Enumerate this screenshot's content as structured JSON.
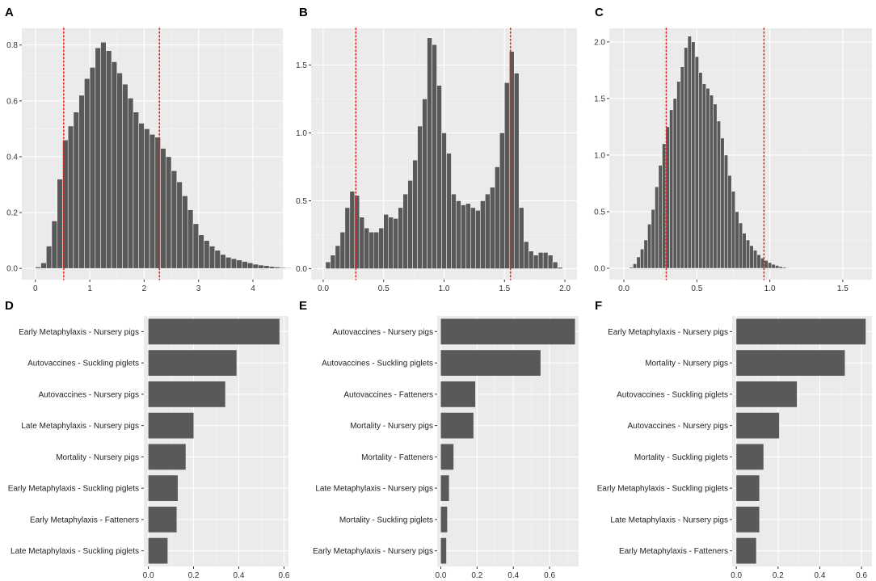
{
  "figure_title": "",
  "colors": {
    "panel_bg": "#ebebeb",
    "grid_major": "#ffffff",
    "bar_fill": "#595959",
    "bar_stroke": "#ffffff",
    "vline": "#e8221a",
    "text": "#333333"
  },
  "chart_data": [
    {
      "panel": "A",
      "type": "histogram",
      "xlim": [
        -0.25,
        4.55
      ],
      "ylim": [
        -0.04,
        0.86
      ],
      "xticks": [
        0,
        1,
        2,
        3,
        4
      ],
      "xtick_labels": [
        "0",
        "1",
        "2",
        "3",
        "4"
      ],
      "yticks": [
        0,
        0.2,
        0.4,
        0.6,
        0.8
      ],
      "ytick_labels": [
        "0.0",
        "0.2",
        "0.4",
        "0.6",
        "0.8"
      ],
      "bin_start": 0.05,
      "bin_width": 0.1,
      "values": [
        0.005,
        0.02,
        0.08,
        0.17,
        0.32,
        0.46,
        0.51,
        0.56,
        0.62,
        0.68,
        0.72,
        0.79,
        0.81,
        0.78,
        0.74,
        0.7,
        0.66,
        0.61,
        0.56,
        0.52,
        0.5,
        0.48,
        0.47,
        0.43,
        0.4,
        0.35,
        0.31,
        0.26,
        0.21,
        0.16,
        0.12,
        0.1,
        0.08,
        0.065,
        0.05,
        0.04,
        0.035,
        0.03,
        0.025,
        0.02,
        0.015,
        0.012,
        0.01,
        0.007,
        0.005,
        0.003,
        0.002,
        0,
        0,
        0,
        0,
        0,
        0,
        0.002
      ],
      "vlines": [
        0.52,
        2.28
      ],
      "xlabel": "",
      "ylabel": ""
    },
    {
      "panel": "B",
      "type": "histogram",
      "xlim": [
        -0.1,
        2.1
      ],
      "ylim": [
        -0.08,
        1.77
      ],
      "xticks": [
        0,
        0.5,
        1,
        1.5,
        2
      ],
      "xtick_labels": [
        "0.0",
        "0.5",
        "1.0",
        "1.5",
        "2.0"
      ],
      "yticks": [
        0,
        0.5,
        1,
        1.5
      ],
      "ytick_labels": [
        "0.0",
        "0.5",
        "1.0",
        "1.5"
      ],
      "bin_start": 0.04,
      "bin_width": 0.04,
      "values": [
        0.05,
        0.1,
        0.17,
        0.27,
        0.45,
        0.57,
        0.54,
        0.38,
        0.3,
        0.27,
        0.27,
        0.3,
        0.4,
        0.38,
        0.37,
        0.45,
        0.55,
        0.65,
        0.8,
        1.05,
        1.25,
        1.7,
        1.65,
        1.35,
        1.0,
        0.85,
        0.55,
        0.5,
        0.47,
        0.48,
        0.45,
        0.43,
        0.5,
        0.55,
        0.6,
        0.75,
        1.0,
        1.37,
        1.6,
        1.44,
        0.45,
        0.2,
        0.13,
        0.1,
        0.12,
        0.12,
        0.1,
        0.05,
        0.01
      ],
      "vlines": [
        0.27,
        1.55
      ],
      "xlabel": "",
      "ylabel": ""
    },
    {
      "panel": "C",
      "type": "histogram",
      "xlim": [
        -0.1,
        1.7
      ],
      "ylim": [
        -0.1,
        2.12
      ],
      "xticks": [
        0,
        0.5,
        1,
        1.5
      ],
      "xtick_labels": [
        "0.0",
        "0.5",
        "1.0",
        "1.5"
      ],
      "yticks": [
        0,
        0.5,
        1,
        1.5,
        2
      ],
      "ytick_labels": [
        "0.0",
        "0.5",
        "1.0",
        "1.5",
        "2.0"
      ],
      "bin_start": 0.05,
      "bin_width": 0.025,
      "values": [
        0.01,
        0.04,
        0.1,
        0.17,
        0.25,
        0.39,
        0.52,
        0.72,
        0.91,
        1.1,
        1.25,
        1.4,
        1.5,
        1.65,
        1.78,
        1.95,
        2.05,
        2.0,
        1.87,
        1.73,
        1.63,
        1.59,
        1.53,
        1.45,
        1.3,
        1.15,
        1.0,
        0.82,
        0.68,
        0.5,
        0.4,
        0.31,
        0.25,
        0.2,
        0.16,
        0.12,
        0.09,
        0.07,
        0.05,
        0.035,
        0.025,
        0.015,
        0.01,
        0.005
      ],
      "vlines": [
        0.29,
        0.96
      ],
      "xlabel": "",
      "ylabel": ""
    },
    {
      "panel": "D",
      "type": "bar",
      "orientation": "horizontal",
      "xlim": [
        -0.02,
        0.62
      ],
      "xticks": [
        0,
        0.2,
        0.4,
        0.6
      ],
      "xtick_labels": [
        "0.0",
        "0.2",
        "0.4",
        "0.6"
      ],
      "categories": [
        "Early Metaphylaxis - Nursery pigs",
        "Autovaccines - Suckling piglets",
        "Autovaccines - Nursery pigs",
        "Late Metaphylaxis - Nursery pigs",
        "Mortality - Nursery pigs",
        "Early Metaphylaxis - Suckling piglets",
        "Early Metaphylaxis - Fatteners",
        "Late Metaphylaxis - Suckling piglets"
      ],
      "values": [
        0.58,
        0.39,
        0.34,
        0.2,
        0.165,
        0.13,
        0.125,
        0.085
      ],
      "xlabel": "",
      "ylabel": ""
    },
    {
      "panel": "E",
      "type": "bar",
      "orientation": "horizontal",
      "xlim": [
        -0.02,
        0.76
      ],
      "xticks": [
        0,
        0.2,
        0.4,
        0.6
      ],
      "xtick_labels": [
        "0.0",
        "0.2",
        "0.4",
        "0.6"
      ],
      "categories": [
        "Autovaccines - Nursery pigs",
        "Autovaccines - Suckling piglets",
        "Autovaccines - Fatteners",
        "Mortality - Nursery pigs",
        "Mortality - Fatteners",
        "Late Metaphylaxis - Nursery pigs",
        "Mortality - Suckling piglets",
        "Early Metaphylaxis - Nursery pigs"
      ],
      "values": [
        0.74,
        0.55,
        0.19,
        0.18,
        0.07,
        0.045,
        0.035,
        0.03
      ],
      "xlabel": "",
      "ylabel": ""
    },
    {
      "panel": "F",
      "type": "bar",
      "orientation": "horizontal",
      "xlim": [
        -0.02,
        0.65
      ],
      "xticks": [
        0,
        0.2,
        0.4,
        0.6
      ],
      "xtick_labels": [
        "0.0",
        "0.2",
        "0.4",
        "0.6"
      ],
      "categories": [
        "Early Metaphylaxis - Nursery pigs",
        "Mortality - Nursery pigs",
        "Autovaccines - Suckling piglets",
        "Autovaccines - Nursery pigs",
        "Mortality - Suckling piglets",
        "Early Metaphylaxis - Suckling piglets",
        "Late Metaphylaxis - Nursery pigs",
        "Early Metaphylaxis - Fatteners"
      ],
      "values": [
        0.62,
        0.52,
        0.29,
        0.205,
        0.13,
        0.11,
        0.11,
        0.095
      ],
      "xlabel": "",
      "ylabel": ""
    }
  ]
}
